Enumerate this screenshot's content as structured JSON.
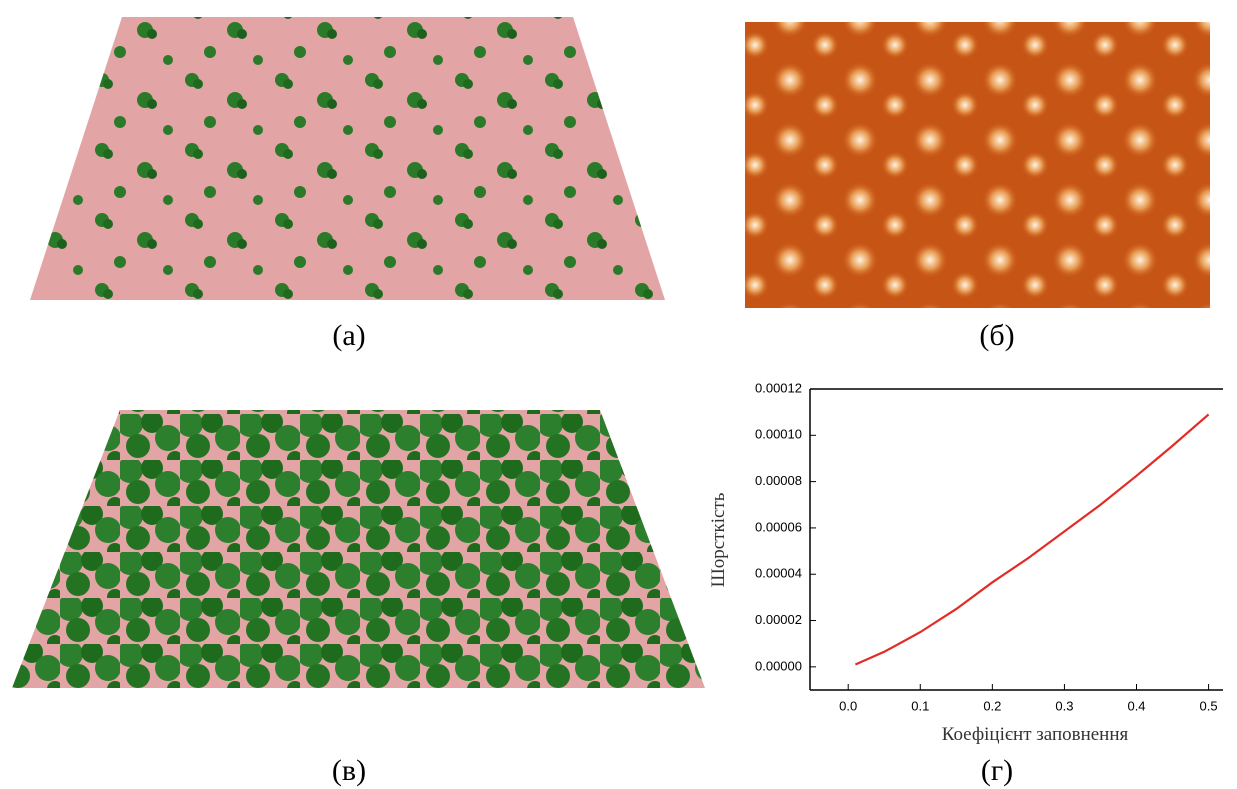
{
  "panels": {
    "labels": [
      "(а)",
      "(б)",
      "(в)",
      "(г)"
    ]
  },
  "chart_data": {
    "type": "line",
    "x": [
      0.01,
      0.05,
      0.1,
      0.15,
      0.2,
      0.25,
      0.3,
      0.35,
      0.4,
      0.45,
      0.5
    ],
    "series": [
      {
        "color": "#e32b26",
        "values": [
          1e-06,
          6.5e-06,
          1.5e-05,
          2.5e-05,
          3.65e-05,
          4.7e-05,
          5.85e-05,
          7e-05,
          8.25e-05,
          9.55e-05,
          0.000109
        ]
      }
    ],
    "xlabel": "Коефіцієнт заповнення",
    "ylabel": "Шорсткість",
    "xlim": [
      -0.053,
      0.52
    ],
    "ylim": [
      -1e-05,
      0.00012
    ],
    "xticks": [
      {
        "value": 0,
        "label": "0.0"
      },
      0.1,
      0.2,
      0.3,
      0.4,
      0.5
    ],
    "yticks": [
      {
        "value": 0,
        "label": "0.00000"
      },
      {
        "value": 2e-05,
        "label": "0.00002"
      },
      {
        "value": 4e-05,
        "label": "0.00004"
      },
      {
        "value": 6e-05,
        "label": "0.00006"
      },
      {
        "value": 8e-05,
        "label": "0.00008"
      },
      {
        "value": 0.0001,
        "label": "0.00010"
      },
      {
        "value": 0.00012,
        "label": "0.00012"
      }
    ]
  }
}
